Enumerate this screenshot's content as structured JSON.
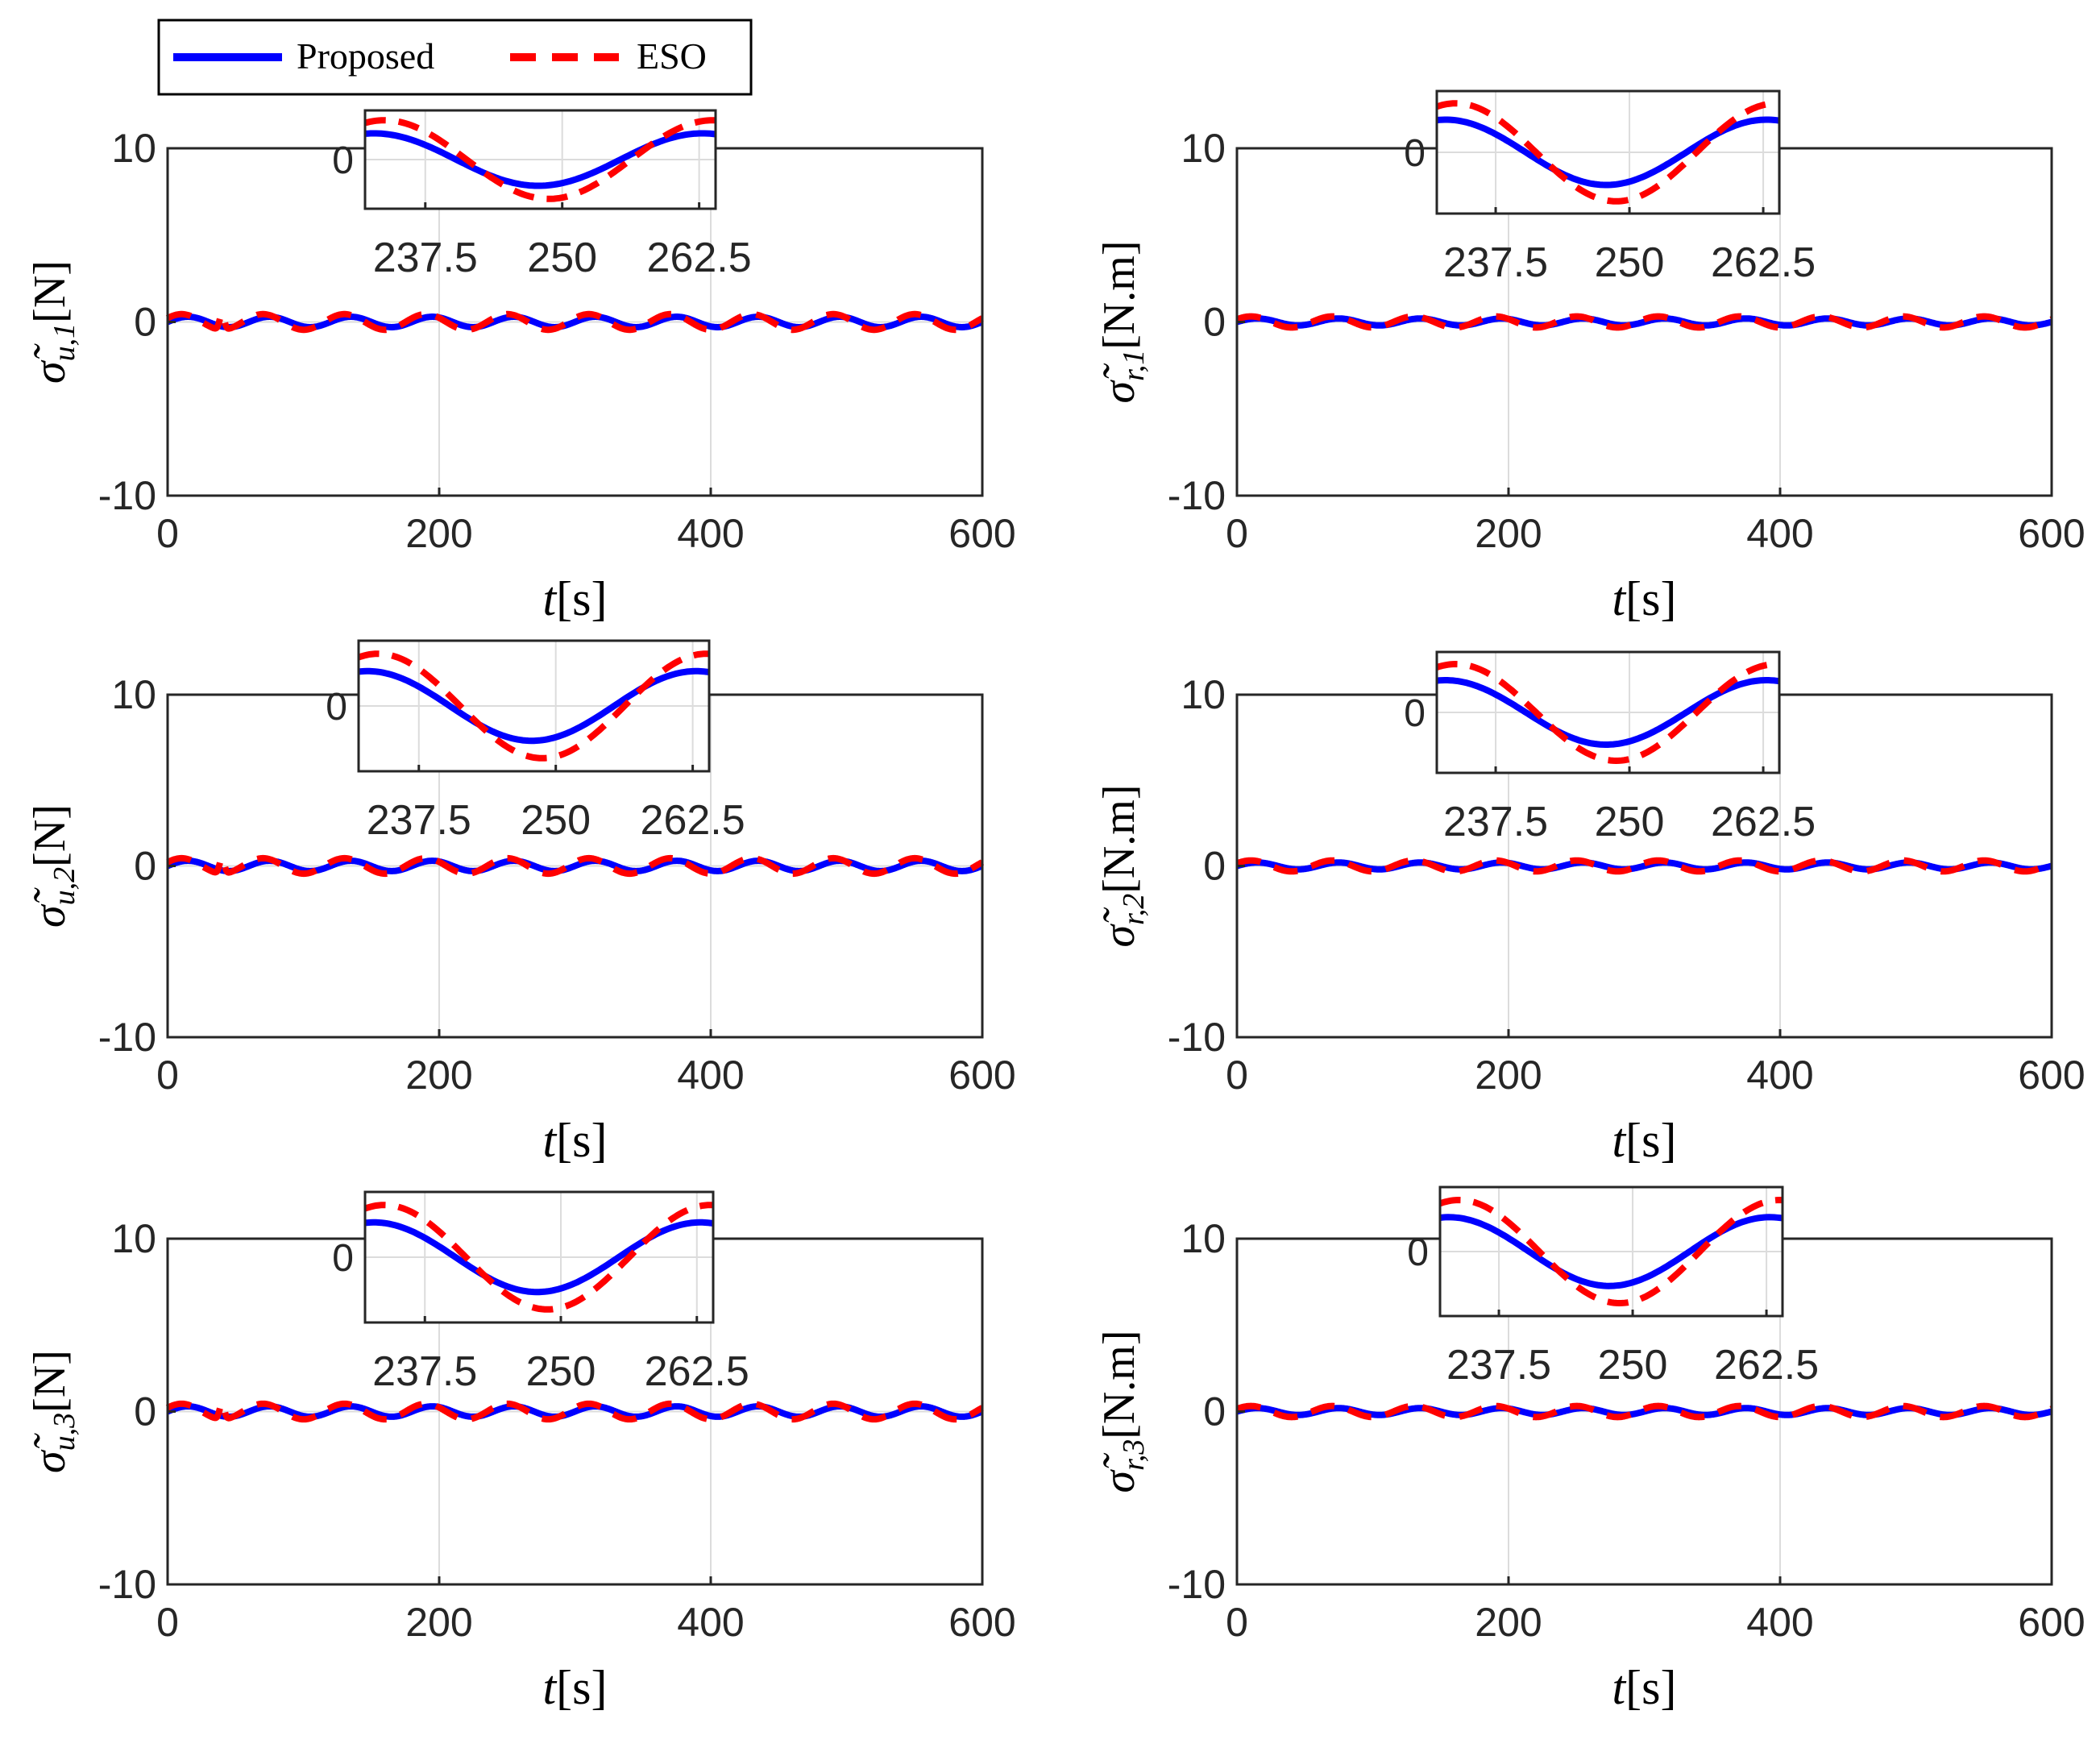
{
  "legend": {
    "items": [
      {
        "label": "Proposed",
        "color": "#0000ff",
        "style": "solid"
      },
      {
        "label": "ESO",
        "color": "#ff0000",
        "style": "dashed"
      }
    ]
  },
  "chart_data": [
    {
      "type": "line",
      "panel": "u1",
      "ylabel_symbol": "σ̃",
      "ylabel_sub": "u,1",
      "ylabel_unit": "[N]",
      "xlabel_var": "t",
      "xlabel_unit": "[s]",
      "xlim": [
        0,
        600
      ],
      "ylim": [
        -10,
        10
      ],
      "xticks": [
        "0",
        "200",
        "400",
        "600"
      ],
      "yticks": [
        "10",
        "0",
        "-10"
      ],
      "series": [
        {
          "name": "Proposed",
          "amplitude": 0.3,
          "period_s": 60
        },
        {
          "name": "ESO",
          "amplitude": 0.45,
          "period_s": 60,
          "spike_at_s": 40,
          "spike_peak": 0.9
        }
      ],
      "inset": {
        "xlim": [
          232,
          264
        ],
        "xticks": [
          "237.5",
          "250",
          "262.5"
        ],
        "ytick": "0",
        "proposed_amplitude": 0.28,
        "eso_amplitude": 0.42
      }
    },
    {
      "type": "line",
      "panel": "r1",
      "ylabel_symbol": "σ̃",
      "ylabel_sub": "r,1",
      "ylabel_unit": "[N.m]",
      "xlabel_var": "t",
      "xlabel_unit": "[s]",
      "xlim": [
        0,
        600
      ],
      "ylim": [
        -10,
        10
      ],
      "xticks": [
        "0",
        "200",
        "400",
        "600"
      ],
      "yticks": [
        "10",
        "0",
        "-10"
      ],
      "series": [
        {
          "name": "Proposed",
          "amplitude": 0.2,
          "period_s": 60
        },
        {
          "name": "ESO",
          "amplitude": 0.32,
          "period_s": 60
        }
      ],
      "inset": {
        "xlim": [
          232,
          264
        ],
        "xticks": [
          "237.5",
          "250",
          "262.5"
        ],
        "ytick": "0",
        "proposed_amplitude": 0.2,
        "eso_amplitude": 0.3
      }
    },
    {
      "type": "line",
      "panel": "u2",
      "ylabel_symbol": "σ̃",
      "ylabel_sub": "u,2",
      "ylabel_unit": "[N]",
      "xlabel_var": "t",
      "xlabel_unit": "[s]",
      "xlim": [
        0,
        600
      ],
      "ylim": [
        -10,
        10
      ],
      "xticks": [
        "0",
        "200",
        "400",
        "600"
      ],
      "yticks": [
        "10",
        "0",
        "-10"
      ],
      "series": [
        {
          "name": "Proposed",
          "amplitude": 0.3,
          "period_s": 60
        },
        {
          "name": "ESO",
          "amplitude": 0.45,
          "period_s": 60,
          "spike_at_s": 40,
          "spike_peak": 0.9
        }
      ],
      "inset": {
        "xlim": [
          232,
          264
        ],
        "xticks": [
          "237.5",
          "250",
          "262.5"
        ],
        "ytick": "0",
        "proposed_amplitude": 0.28,
        "eso_amplitude": 0.42
      }
    },
    {
      "type": "line",
      "panel": "r2",
      "ylabel_symbol": "σ̃",
      "ylabel_sub": "r,2",
      "ylabel_unit": "[N.m]",
      "xlabel_var": "t",
      "xlabel_unit": "[s]",
      "xlim": [
        0,
        600
      ],
      "ylim": [
        -10,
        10
      ],
      "xticks": [
        "0",
        "200",
        "400",
        "600"
      ],
      "yticks": [
        "10",
        "0",
        "-10"
      ],
      "series": [
        {
          "name": "Proposed",
          "amplitude": 0.2,
          "period_s": 60
        },
        {
          "name": "ESO",
          "amplitude": 0.32,
          "period_s": 60
        }
      ],
      "inset": {
        "xlim": [
          232,
          264
        ],
        "xticks": [
          "237.5",
          "250",
          "262.5"
        ],
        "ytick": "0",
        "proposed_amplitude": 0.2,
        "eso_amplitude": 0.3
      }
    },
    {
      "type": "line",
      "panel": "u3",
      "ylabel_symbol": "σ̃",
      "ylabel_sub": "u,3",
      "ylabel_unit": "[N]",
      "xlabel_var": "t",
      "xlabel_unit": "[s]",
      "xlim": [
        0,
        600
      ],
      "ylim": [
        -10,
        10
      ],
      "xticks": [
        "0",
        "200",
        "400",
        "600"
      ],
      "yticks": [
        "10",
        "0",
        "-10"
      ],
      "series": [
        {
          "name": "Proposed",
          "amplitude": 0.3,
          "period_s": 60
        },
        {
          "name": "ESO",
          "amplitude": 0.45,
          "period_s": 60,
          "spike_at_s": 40,
          "spike_peak": 0.9
        }
      ],
      "inset": {
        "xlim": [
          232,
          264
        ],
        "xticks": [
          "237.5",
          "250",
          "262.5"
        ],
        "ytick": "0",
        "proposed_amplitude": 0.28,
        "eso_amplitude": 0.42
      }
    },
    {
      "type": "line",
      "panel": "r3",
      "ylabel_symbol": "σ̃",
      "ylabel_sub": "r,3",
      "ylabel_unit": "[N.m]",
      "xlabel_var": "t",
      "xlabel_unit": "[s]",
      "xlim": [
        0,
        600
      ],
      "ylim": [
        -10,
        10
      ],
      "xticks": [
        "0",
        "200",
        "400",
        "600"
      ],
      "yticks": [
        "10",
        "0",
        "-10"
      ],
      "series": [
        {
          "name": "Proposed",
          "amplitude": 0.2,
          "period_s": 60
        },
        {
          "name": "ESO",
          "amplitude": 0.32,
          "period_s": 60
        }
      ],
      "inset": {
        "xlim": [
          232,
          264
        ],
        "xticks": [
          "237.5",
          "250",
          "262.5"
        ],
        "ytick": "0",
        "proposed_amplitude": 0.2,
        "eso_amplitude": 0.3
      }
    }
  ]
}
